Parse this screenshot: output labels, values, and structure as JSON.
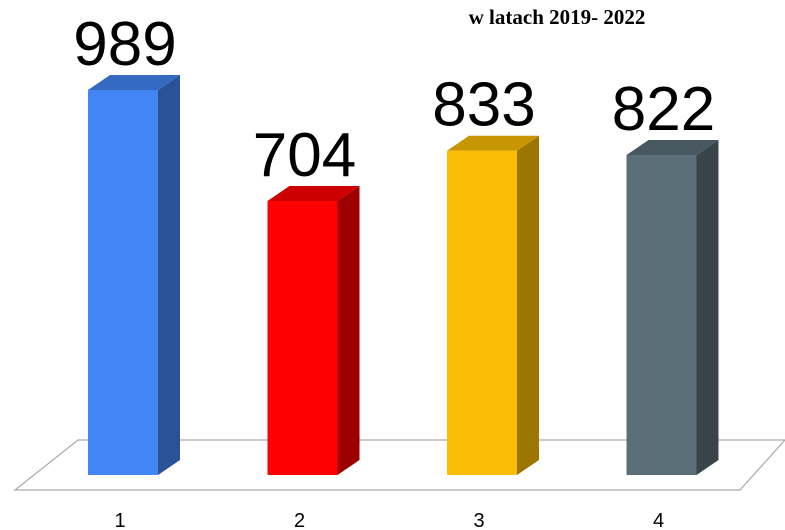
{
  "chart_data": {
    "type": "bar3d",
    "title": "w latach 2019- 2022",
    "categories": [
      "1",
      "2",
      "3",
      "4"
    ],
    "values": [
      989,
      704,
      833,
      822
    ],
    "colors": [
      "#4285f4",
      "#ff0000",
      "#fbbc04",
      "#5a6e78"
    ]
  }
}
